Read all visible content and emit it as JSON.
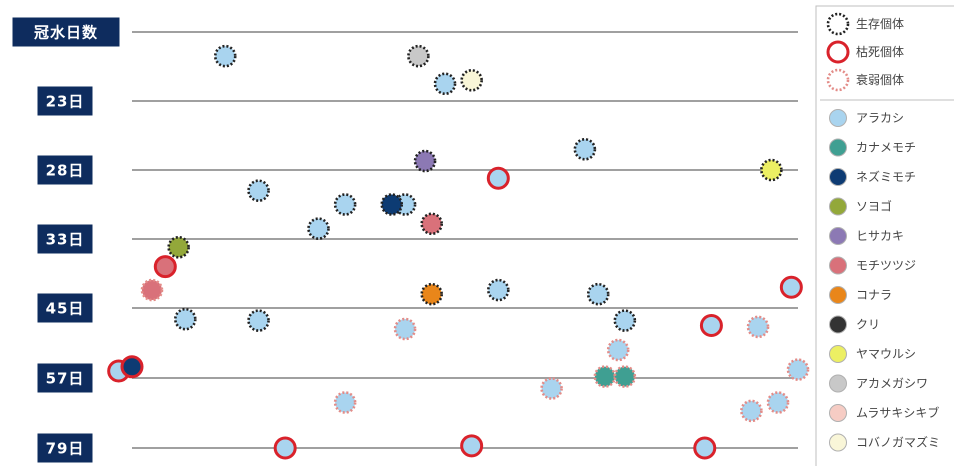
{
  "chart_data": {
    "type": "scatter",
    "title": "冠水日数",
    "categories": [
      "冠水日数",
      "23日",
      "28日",
      "33日",
      "45日",
      "57日",
      "79日"
    ],
    "status_legend": [
      {
        "name": "生存個体",
        "style": "alive"
      },
      {
        "name": "枯死個体",
        "style": "dead"
      },
      {
        "name": "衰弱個体",
        "style": "weak"
      }
    ],
    "species_legend": [
      {
        "name": "アラカシ",
        "color": "#a9d4ef"
      },
      {
        "name": "カナメモチ",
        "color": "#3f9f92"
      },
      {
        "name": "ネズミモチ",
        "color": "#0d3b73"
      },
      {
        "name": "ソヨゴ",
        "color": "#93a83a"
      },
      {
        "name": "ヒサカキ",
        "color": "#8c79b4"
      },
      {
        "name": "モチツツジ",
        "color": "#d9717a"
      },
      {
        "name": "コナラ",
        "color": "#e9861a"
      },
      {
        "name": "クリ",
        "color": "#333333"
      },
      {
        "name": "ヤマウルシ",
        "color": "#ecef63"
      },
      {
        "name": "アカメガシワ",
        "color": "#c8c8c8"
      },
      {
        "name": "ムラサキシキブ",
        "color": "#f6ccc4"
      },
      {
        "name": "コバノガマズミ",
        "color": "#f9f6d8"
      }
    ],
    "points": [
      {
        "x": 0.14,
        "y": 0.35,
        "species": "アラカシ",
        "status": "alive"
      },
      {
        "x": 0.43,
        "y": 0.35,
        "species": "アカメガシワ",
        "status": "alive"
      },
      {
        "x": 0.47,
        "y": 0.75,
        "species": "アラカシ",
        "status": "alive"
      },
      {
        "x": 0.51,
        "y": 0.7,
        "species": "コバノガマズミ",
        "status": "alive"
      },
      {
        "x": 0.68,
        "y": 1.7,
        "species": "アラカシ",
        "status": "alive"
      },
      {
        "x": 0.44,
        "y": 1.87,
        "species": "ヒサカキ",
        "status": "alive"
      },
      {
        "x": 0.55,
        "y": 2.12,
        "species": "アラカシ",
        "status": "dead"
      },
      {
        "x": 0.96,
        "y": 2.0,
        "species": "ヤマウルシ",
        "status": "alive"
      },
      {
        "x": 0.19,
        "y": 2.3,
        "species": "アラカシ",
        "status": "alive"
      },
      {
        "x": 0.32,
        "y": 2.5,
        "species": "アラカシ",
        "status": "alive"
      },
      {
        "x": 0.41,
        "y": 2.5,
        "species": "アラカシ",
        "status": "alive"
      },
      {
        "x": 0.39,
        "y": 2.5,
        "species": "ネズミモチ",
        "status": "alive"
      },
      {
        "x": 0.28,
        "y": 2.85,
        "species": "アラカシ",
        "status": "alive"
      },
      {
        "x": 0.45,
        "y": 2.78,
        "species": "モチツツジ",
        "status": "alive"
      },
      {
        "x": 0.07,
        "y": 3.12,
        "species": "ソヨゴ",
        "status": "alive"
      },
      {
        "x": 0.05,
        "y": 3.4,
        "species": "モチツツジ",
        "status": "dead"
      },
      {
        "x": 0.03,
        "y": 3.74,
        "species": "モチツツジ",
        "status": "weak"
      },
      {
        "x": 0.45,
        "y": 3.8,
        "species": "コナラ",
        "status": "alive"
      },
      {
        "x": 0.55,
        "y": 3.74,
        "species": "アラカシ",
        "status": "alive"
      },
      {
        "x": 0.7,
        "y": 3.8,
        "species": "アラカシ",
        "status": "alive"
      },
      {
        "x": 0.99,
        "y": 3.7,
        "species": "アラカシ",
        "status": "dead"
      },
      {
        "x": 0.08,
        "y": 4.16,
        "species": "アラカシ",
        "status": "alive"
      },
      {
        "x": 0.19,
        "y": 4.18,
        "species": "アラカシ",
        "status": "alive"
      },
      {
        "x": 0.41,
        "y": 4.3,
        "species": "アラカシ",
        "status": "weak"
      },
      {
        "x": 0.74,
        "y": 4.18,
        "species": "アラカシ",
        "status": "alive"
      },
      {
        "x": 0.87,
        "y": 4.25,
        "species": "アラカシ",
        "status": "dead"
      },
      {
        "x": 0.94,
        "y": 4.27,
        "species": "アラカシ",
        "status": "weak"
      },
      {
        "x": 0.73,
        "y": 4.6,
        "species": "アラカシ",
        "status": "weak"
      },
      {
        "x": -0.02,
        "y": 4.9,
        "species": "アラカシ",
        "status": "dead"
      },
      {
        "x": 0.0,
        "y": 4.84,
        "species": "ネズミモチ",
        "status": "dead"
      },
      {
        "x": 1.0,
        "y": 4.88,
        "species": "アラカシ",
        "status": "weak"
      },
      {
        "x": 0.71,
        "y": 4.98,
        "species": "カナメモチ",
        "status": "weak"
      },
      {
        "x": 0.74,
        "y": 4.98,
        "species": "カナメモチ",
        "status": "weak"
      },
      {
        "x": 0.63,
        "y": 5.15,
        "species": "アラカシ",
        "status": "weak"
      },
      {
        "x": 0.32,
        "y": 5.35,
        "species": "アラカシ",
        "status": "weak"
      },
      {
        "x": 0.97,
        "y": 5.35,
        "species": "アラカシ",
        "status": "weak"
      },
      {
        "x": 0.93,
        "y": 5.47,
        "species": "アラカシ",
        "status": "weak"
      },
      {
        "x": 0.51,
        "y": 5.97,
        "species": "アラカシ",
        "status": "dead"
      },
      {
        "x": 0.23,
        "y": 6.97,
        "species": "アラカシ",
        "status": "dead"
      },
      {
        "x": 0.86,
        "y": 6.97,
        "species": "アラカシ",
        "status": "dead"
      }
    ]
  }
}
